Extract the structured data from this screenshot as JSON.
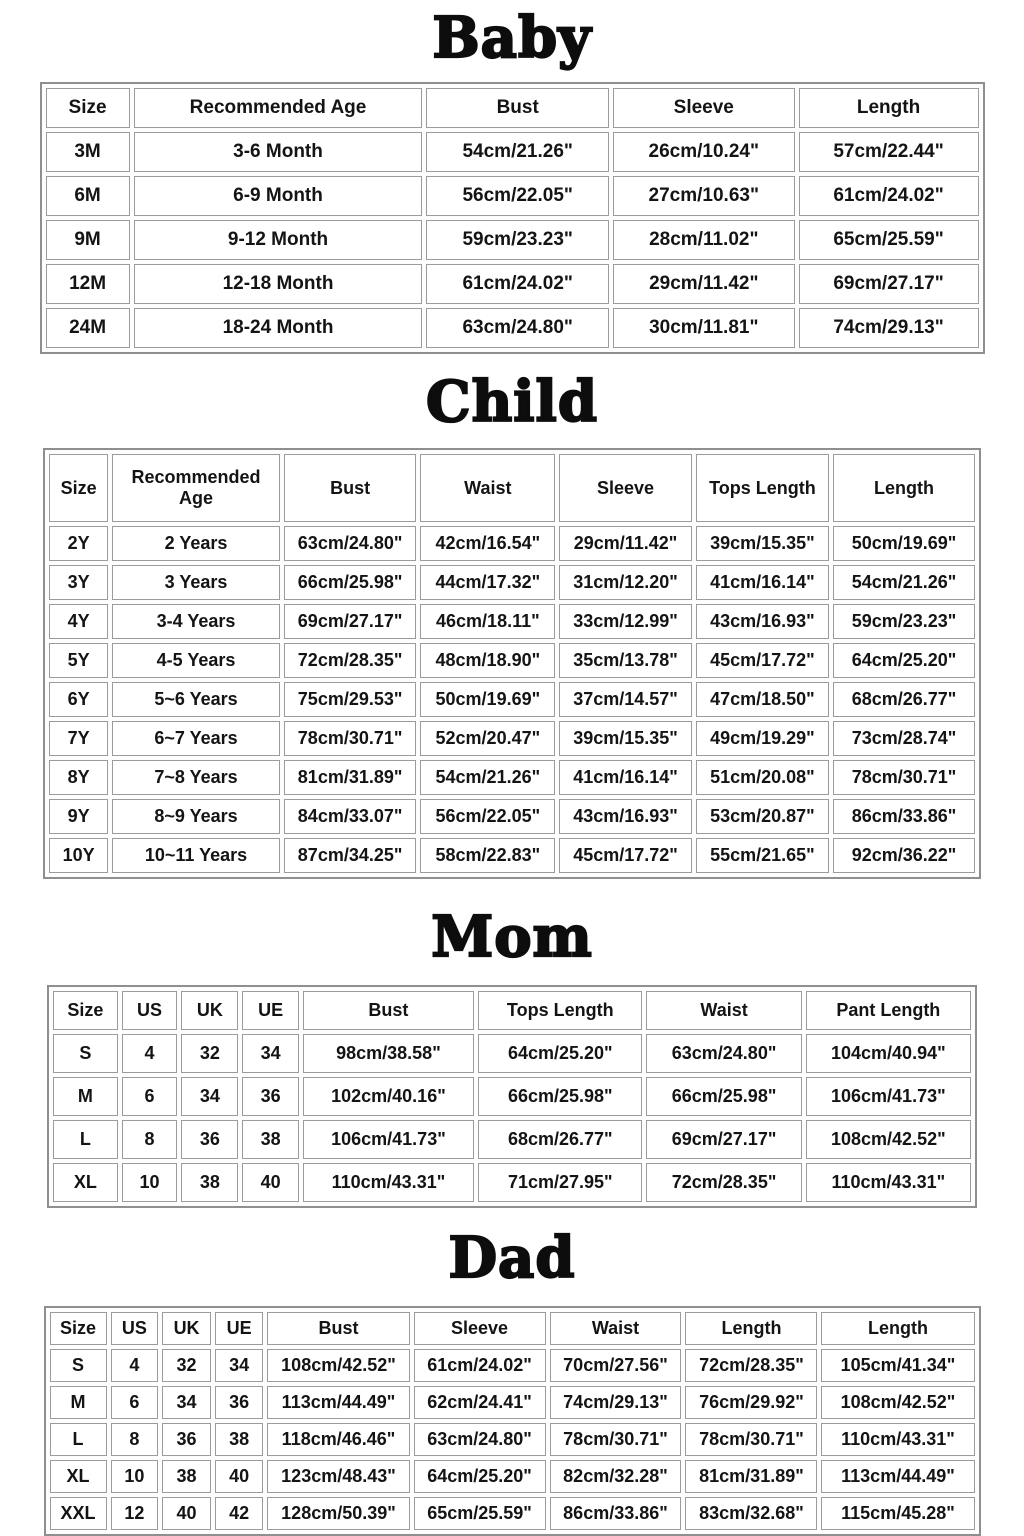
{
  "colors": {
    "page_background": "#ffffff",
    "table_outer_border": "#8f8f8f",
    "cell_border": "#9b9b9b",
    "cell_background": "#ffffff",
    "text": "#141414"
  },
  "tables": [
    {
      "title": "Baby",
      "headers": [
        "Size",
        "Recommended Age",
        "Bust",
        "Sleeve",
        "Length"
      ],
      "rows": [
        [
          "3M",
          "3-6 Month",
          "54cm/21.26\"",
          "26cm/10.24\"",
          "57cm/22.44\""
        ],
        [
          "6M",
          "6-9 Month",
          "56cm/22.05\"",
          "27cm/10.63\"",
          "61cm/24.02\""
        ],
        [
          "9M",
          "9-12 Month",
          "59cm/23.23\"",
          "28cm/11.02\"",
          "65cm/25.59\""
        ],
        [
          "12M",
          "12-18 Month",
          "61cm/24.02\"",
          "29cm/11.42\"",
          "69cm/27.17\""
        ],
        [
          "24M",
          "18-24 Month",
          "63cm/24.80\"",
          "30cm/11.81\"",
          "74cm/29.13\""
        ]
      ]
    },
    {
      "title": "Child",
      "headers": [
        "Size",
        "Recommended Age",
        "Bust",
        "Waist",
        "Sleeve",
        "Tops Length",
        "Length"
      ],
      "rows": [
        [
          "2Y",
          "2 Years",
          "63cm/24.80\"",
          "42cm/16.54\"",
          "29cm/11.42\"",
          "39cm/15.35\"",
          "50cm/19.69\""
        ],
        [
          "3Y",
          "3 Years",
          "66cm/25.98\"",
          "44cm/17.32\"",
          "31cm/12.20\"",
          "41cm/16.14\"",
          "54cm/21.26\""
        ],
        [
          "4Y",
          "3-4 Years",
          "69cm/27.17\"",
          "46cm/18.11\"",
          "33cm/12.99\"",
          "43cm/16.93\"",
          "59cm/23.23\""
        ],
        [
          "5Y",
          "4-5 Years",
          "72cm/28.35\"",
          "48cm/18.90\"",
          "35cm/13.78\"",
          "45cm/17.72\"",
          "64cm/25.20\""
        ],
        [
          "6Y",
          "5~6 Years",
          "75cm/29.53\"",
          "50cm/19.69\"",
          "37cm/14.57\"",
          "47cm/18.50\"",
          "68cm/26.77\""
        ],
        [
          "7Y",
          "6~7 Years",
          "78cm/30.71\"",
          "52cm/20.47\"",
          "39cm/15.35\"",
          "49cm/19.29\"",
          "73cm/28.74\""
        ],
        [
          "8Y",
          "7~8 Years",
          "81cm/31.89\"",
          "54cm/21.26\"",
          "41cm/16.14\"",
          "51cm/20.08\"",
          "78cm/30.71\""
        ],
        [
          "9Y",
          "8~9 Years",
          "84cm/33.07\"",
          "56cm/22.05\"",
          "43cm/16.93\"",
          "53cm/20.87\"",
          "86cm/33.86\""
        ],
        [
          "10Y",
          "10~11 Years",
          "87cm/34.25\"",
          "58cm/22.83\"",
          "45cm/17.72\"",
          "55cm/21.65\"",
          "92cm/36.22\""
        ]
      ]
    },
    {
      "title": "Mom",
      "headers": [
        "Size",
        "US",
        "UK",
        "UE",
        "Bust",
        "Tops Length",
        "Waist",
        "Pant Length"
      ],
      "rows": [
        [
          "S",
          "4",
          "32",
          "34",
          "98cm/38.58\"",
          "64cm/25.20\"",
          "63cm/24.80\"",
          "104cm/40.94\""
        ],
        [
          "M",
          "6",
          "34",
          "36",
          "102cm/40.16\"",
          "66cm/25.98\"",
          "66cm/25.98\"",
          "106cm/41.73\""
        ],
        [
          "L",
          "8",
          "36",
          "38",
          "106cm/41.73\"",
          "68cm/26.77\"",
          "69cm/27.17\"",
          "108cm/42.52\""
        ],
        [
          "XL",
          "10",
          "38",
          "40",
          "110cm/43.31\"",
          "71cm/27.95\"",
          "72cm/28.35\"",
          "110cm/43.31\""
        ]
      ]
    },
    {
      "title": "Dad",
      "headers": [
        "Size",
        "US",
        "UK",
        "UE",
        "Bust",
        "Sleeve",
        "Waist",
        "Length",
        "Length"
      ],
      "rows": [
        [
          "S",
          "4",
          "32",
          "34",
          "108cm/42.52\"",
          "61cm/24.02\"",
          "70cm/27.56\"",
          "72cm/28.35\"",
          "105cm/41.34\""
        ],
        [
          "M",
          "6",
          "34",
          "36",
          "113cm/44.49\"",
          "62cm/24.41\"",
          "74cm/29.13\"",
          "76cm/29.92\"",
          "108cm/42.52\""
        ],
        [
          "L",
          "8",
          "36",
          "38",
          "118cm/46.46\"",
          "63cm/24.80\"",
          "78cm/30.71\"",
          "78cm/30.71\"",
          "110cm/43.31\""
        ],
        [
          "XL",
          "10",
          "38",
          "40",
          "123cm/48.43\"",
          "64cm/25.20\"",
          "82cm/32.28\"",
          "81cm/31.89\"",
          "113cm/44.49\""
        ],
        [
          "XXL",
          "12",
          "40",
          "42",
          "128cm/50.39\"",
          "65cm/25.59\"",
          "86cm/33.86\"",
          "83cm/32.68\"",
          "115cm/45.28\""
        ]
      ]
    }
  ]
}
